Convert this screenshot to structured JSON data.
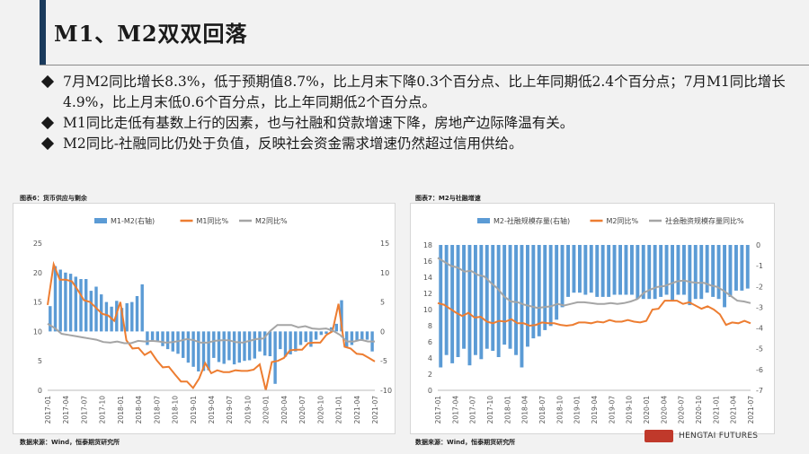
{
  "header": {
    "title": "M1、M2双双回落"
  },
  "colors": {
    "accent": "#1a3a5c",
    "bar": "#5b9bd5",
    "m1_line": "#ed7d31",
    "m2_line": "#a5a5a5"
  },
  "bullets": [
    "7月M2同比增长8.3%，低于预期值8.7%，比上月末下降0.3个百分点、比上年同期低2.4个百分点；7月M1同比增长4.9%，比上月末低0.6个百分点，比上年同期低2个百分点。",
    "M1同比走低有基数上行的因素，也与社融和贷款增速下降，房地产边际降温有关。",
    "M2同比-社融同比仍处于负值，反映社会资金需求增速仍然超过信用供给。"
  ],
  "figures": [
    {
      "caption": "图表6：货币供应与剩余",
      "source": "数据来源：Wind，恒泰期货研究所"
    },
    {
      "caption": "图表7：M2与社融增速",
      "source": "数据来源：Wind，恒泰期货研究所"
    }
  ],
  "logo": {
    "text": "HENGTAI FUTURES"
  },
  "chart_data": [
    {
      "type": "bar",
      "legend": [
        "M1-M2(右轴)",
        "M1同比%",
        "M2同比%"
      ],
      "x_ticks": [
        "2017-01",
        "2017-04",
        "2017-07",
        "2017-10",
        "2018-01",
        "2018-04",
        "2018-07",
        "2018-10",
        "2019-01",
        "2019-04",
        "2019-07",
        "2019-10",
        "2020-01",
        "2020-04",
        "2020-07",
        "2020-10",
        "2021-01",
        "2021-04",
        "2021-07"
      ],
      "ylim_left": [
        0,
        25
      ],
      "yticks_left": [
        0,
        5,
        10,
        15,
        20,
        25
      ],
      "ylim_right": [
        -10,
        15
      ],
      "yticks_right": [
        -10,
        -5,
        0,
        5,
        10,
        15
      ],
      "series": [
        {
          "name": "M1-M2(右轴)",
          "axis": "right",
          "type": "bar",
          "values": [
            4.3,
            11.1,
            10.5,
            10.0,
            9.8,
            9.3,
            8.9,
            8.9,
            6.9,
            7.6,
            6.3,
            5.0,
            4.2,
            5.2,
            4.0,
            4.8,
            5.0,
            6.0,
            8.0,
            -2.3,
            -1.5,
            -1.7,
            -2.5,
            -3.0,
            -3.4,
            -3.8,
            -4.5,
            -5.3,
            -6.0,
            -6.8,
            -6.7,
            -6.6,
            -4.5,
            -5.2,
            -5.5,
            -4.9,
            -5.6,
            -5.3,
            -5.0,
            -4.9,
            -4.6,
            -3.4,
            -4.1,
            -4.2,
            -8.9,
            -3.0,
            -4.3,
            -3.9,
            -3.4,
            -2.3,
            -1.8,
            -2.6,
            -1.4,
            -0.6,
            -0.4,
            0.7,
            1.3,
            5.3,
            -2.7,
            -2.3,
            -1.6,
            -1.6,
            -1.4,
            -3.4
          ]
        },
        {
          "name": "M1同比%",
          "axis": "left",
          "type": "line",
          "values": [
            14.5,
            21.4,
            18.8,
            18.8,
            18.5,
            17.0,
            15.3,
            15.0,
            14.0,
            13.0,
            12.7,
            11.8,
            15.0,
            8.5,
            7.1,
            7.2,
            6.0,
            6.6,
            5.1,
            3.9,
            4.0,
            2.7,
            1.5,
            1.5,
            0.4,
            2.0,
            4.6,
            2.9,
            3.4,
            3.1,
            3.1,
            3.4,
            3.3,
            3.3,
            3.5,
            4.4,
            0.0,
            4.8,
            5.0,
            5.5,
            6.8,
            6.9,
            6.9,
            8.0,
            8.1,
            8.1,
            9.4,
            10.0,
            14.7,
            7.4,
            7.1,
            6.2,
            6.1,
            5.5,
            4.9
          ]
        },
        {
          "name": "M2同比%",
          "axis": "left",
          "type": "line",
          "values": [
            11.3,
            10.6,
            9.6,
            9.4,
            9.2,
            9.0,
            8.8,
            8.6,
            8.2,
            8.1,
            8.3,
            8.0,
            8.0,
            8.4,
            8.3,
            8.4,
            8.3,
            8.1,
            8.2,
            8.4,
            8.7,
            8.5,
            8.1,
            8.1,
            8.4,
            8.5,
            8.5,
            8.2,
            8.1,
            8.4,
            8.7,
            8.8,
            10.1,
            11.1,
            11.1,
            11.1,
            10.7,
            10.9,
            10.5,
            10.4,
            10.5,
            10.1,
            9.4,
            8.3,
            8.3,
            8.6,
            8.3,
            8.3
          ]
        }
      ]
    },
    {
      "type": "bar",
      "legend": [
        "M2-社融规模存量(右轴)",
        "M2同比%",
        "社会融资规模存量同比%"
      ],
      "x_ticks": [
        "2017-01",
        "2017-04",
        "2017-07",
        "2017-10",
        "2018-01",
        "2018-04",
        "2018-07",
        "2018-10",
        "2019-01",
        "2019-04",
        "2019-07",
        "2019-10",
        "2020-01",
        "2020-04",
        "2020-07",
        "2020-10",
        "2021-01",
        "2021-04",
        "2021-07"
      ],
      "ylim_left": [
        0,
        18
      ],
      "yticks_left": [
        0,
        2,
        4,
        6,
        8,
        10,
        12,
        14,
        16,
        18
      ],
      "ylim_right": [
        -7,
        0
      ],
      "yticks_right": [
        -7,
        -6,
        -5,
        -4,
        -3,
        -2,
        -1,
        0
      ],
      "series": [
        {
          "name": "M2-社融规模存量(右轴)",
          "axis": "right",
          "type": "bar",
          "values": [
            -5.9,
            -5.3,
            -5.7,
            -5.4,
            -5.0,
            -5.8,
            -5.3,
            -5.5,
            -5.0,
            -5.1,
            -5.4,
            -4.8,
            -5.0,
            -5.3,
            -5.9,
            -4.9,
            -4.5,
            -4.4,
            -4.1,
            -3.9,
            -3.6,
            -3.0,
            -2.5,
            -2.3,
            -2.3,
            -2.4,
            -2.3,
            -2.5,
            -2.5,
            -2.5,
            -2.4,
            -2.4,
            -2.4,
            -2.4,
            -2.6,
            -2.6,
            -2.6,
            -2.6,
            -2.5,
            -2.4,
            -2.7,
            -2.4,
            -2.4,
            -2.9,
            -2.6,
            -2.6,
            -2.3,
            -2.5,
            -2.6,
            -3.0,
            -2.5,
            -2.2,
            -2.2,
            -2.1
          ]
        },
        {
          "name": "M2同比%",
          "axis": "left",
          "type": "line",
          "values": [
            10.8,
            10.6,
            10.1,
            9.6,
            9.2,
            9.6,
            9.0,
            9.1,
            8.5,
            8.3,
            8.6,
            8.5,
            8.8,
            8.3,
            8.3,
            8.0,
            8.1,
            8.4,
            8.3,
            8.3,
            8.1,
            8.0,
            8.1,
            8.4,
            8.4,
            8.3,
            8.5,
            8.4,
            8.7,
            8.5,
            8.5,
            8.7,
            8.5,
            8.4,
            8.6,
            10.0,
            10.1,
            11.1,
            11.1,
            11.1,
            10.7,
            10.9,
            10.5,
            10.1,
            10.4,
            10.0,
            9.4,
            8.1,
            8.4,
            8.3,
            8.6,
            8.3
          ]
        },
        {
          "name": "社会融资规模存量同比%",
          "axis": "left",
          "type": "line",
          "values": [
            16.4,
            15.9,
            15.4,
            15.2,
            14.7,
            14.8,
            14.3,
            14.1,
            13.3,
            12.6,
            11.6,
            11.0,
            10.9,
            10.6,
            10.4,
            10.2,
            10.3,
            10.4,
            10.7,
            10.5,
            10.7,
            10.9,
            10.9,
            10.8,
            10.7,
            10.7,
            10.8,
            10.7,
            10.8,
            11.0,
            11.3,
            12.1,
            12.5,
            12.8,
            12.9,
            13.2,
            13.5,
            13.6,
            13.4,
            13.3,
            13.3,
            13.0,
            12.8,
            12.3,
            11.7,
            11.1,
            11.0,
            10.8
          ]
        }
      ]
    }
  ]
}
